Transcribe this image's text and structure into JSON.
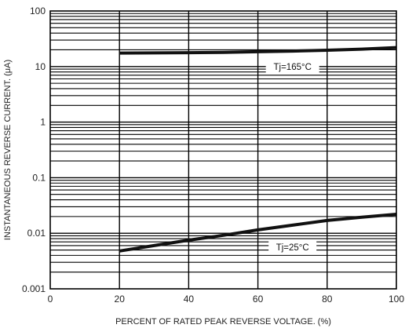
{
  "chart_data": {
    "type": "line",
    "title": "",
    "xlabel": "PERCENT OF RATED PEAK REVERSE VOLTAGE. (%)",
    "ylabel": "INSTANTANEOUS REVERSE CURRENT. (μA)",
    "xlim": [
      0,
      100
    ],
    "ylim": [
      0.001,
      100
    ],
    "yscale": "log",
    "grid": true,
    "x_ticks": [
      "0",
      "20",
      "40",
      "60",
      "80",
      "100"
    ],
    "y_ticks": [
      "0.001",
      "0.01",
      "0.1",
      "1",
      "10",
      "100"
    ],
    "series": [
      {
        "x": [
          20,
          30,
          40,
          50,
          60,
          70,
          80,
          90,
          100
        ],
        "y": [
          17.5,
          17.6,
          17.8,
          18.0,
          18.5,
          19.0,
          19.7,
          20.6,
          22.0
        ]
      },
      {
        "x": [
          20,
          30,
          40,
          50,
          60,
          70,
          80,
          90,
          100
        ],
        "y": [
          0.0048,
          0.006,
          0.0075,
          0.0092,
          0.0115,
          0.014,
          0.017,
          0.0195,
          0.022
        ]
      }
    ],
    "annotations": [
      {
        "text": "Tj=165°C",
        "x": 70,
        "y": 10
      },
      {
        "text": "Tj=25°C",
        "x": 70,
        "y": 0.0056
      }
    ]
  }
}
